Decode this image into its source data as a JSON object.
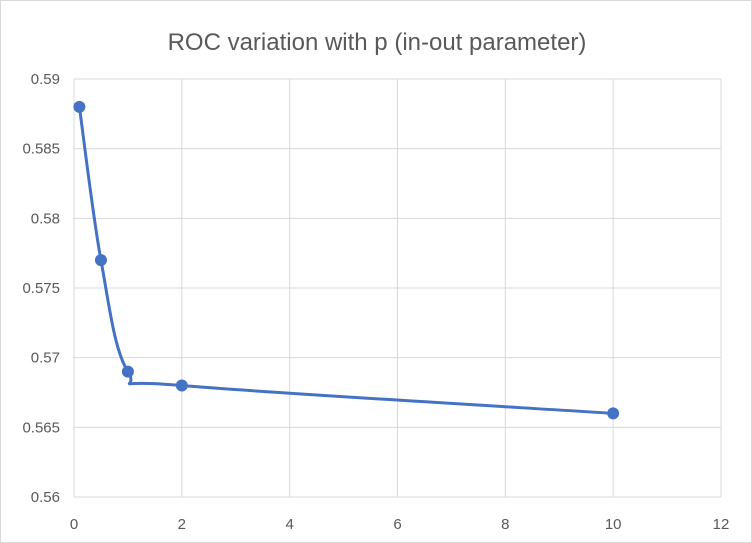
{
  "chart_data": {
    "type": "scatter",
    "title": "ROC variation with p (in-out parameter)",
    "xlabel": "",
    "ylabel": "",
    "xlim": [
      0,
      12
    ],
    "ylim": [
      0.56,
      0.59
    ],
    "x_ticks": [
      0,
      2,
      4,
      6,
      8,
      10,
      12
    ],
    "y_ticks": [
      0.56,
      0.565,
      0.57,
      0.575,
      0.58,
      0.585,
      0.59
    ],
    "x_tick_labels": [
      "0",
      "2",
      "4",
      "6",
      "8",
      "10",
      "12"
    ],
    "y_tick_labels": [
      "0.56",
      "0.565",
      "0.57",
      "0.575",
      "0.58",
      "0.585",
      "0.59"
    ],
    "grid": true,
    "line_style": "smooth",
    "series": [
      {
        "color": "#4472c4",
        "x": [
          0.1,
          0.5,
          1,
          2,
          10
        ],
        "y": [
          0.588,
          0.577,
          0.569,
          0.568,
          0.566
        ]
      }
    ]
  }
}
